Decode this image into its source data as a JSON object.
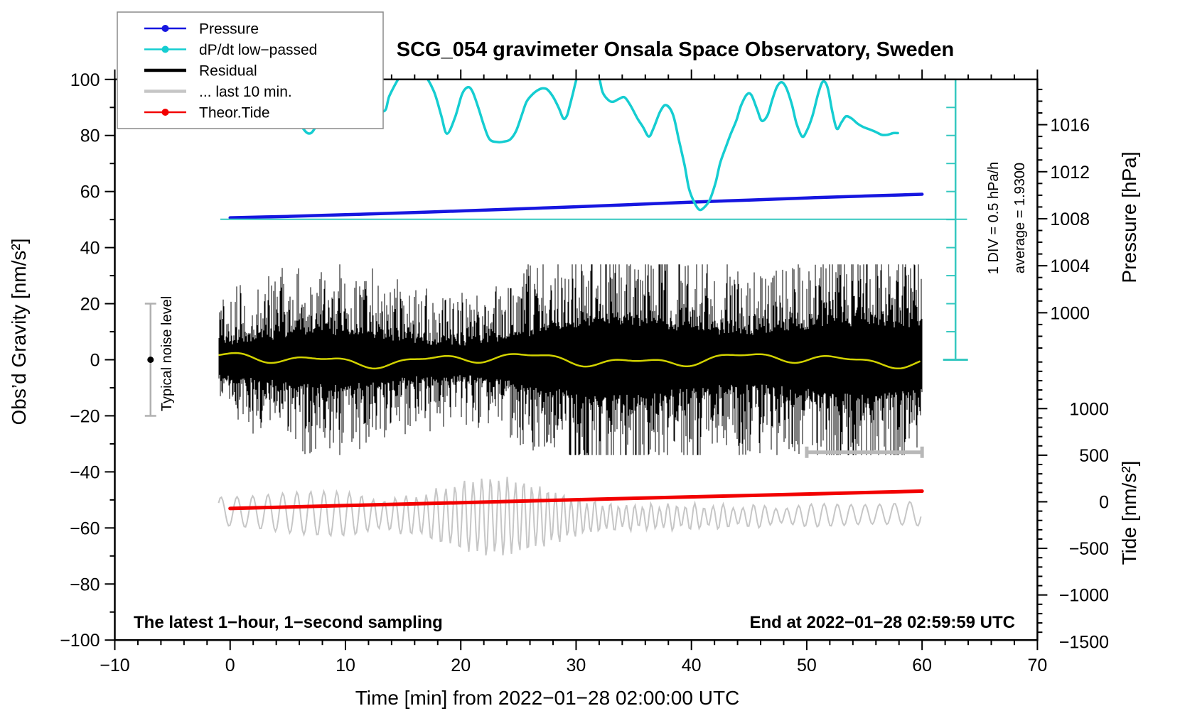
{
  "title": "SCG_054 gravimeter Onsala Space Observatory, Sweden",
  "footer": {
    "left": "The latest 1−hour, 1−second sampling",
    "right": "End at 2022−01−28 02:59:59 UTC"
  },
  "side_annotations": {
    "div": "1 DIV = 0.5 hPa/h",
    "average": "average = 1.9300",
    "noise": "Typical noise level"
  },
  "legend": [
    {
      "label": "Pressure",
      "color": "#1616e0",
      "line_width": 2.5,
      "marker": true
    },
    {
      "label": "dP/dt low−passed",
      "color": "#15cdd1",
      "line_width": 2.5,
      "marker": true
    },
    {
      "label": "Residual",
      "color": "#000000",
      "line_width": 4.5,
      "marker": false
    },
    {
      "label": "... last 10 min.",
      "color": "#c6c6c6",
      "line_width": 4.5,
      "marker": false
    },
    {
      "label": "Theor.Tide",
      "color": "#f20000",
      "line_width": 2.5,
      "marker": true
    }
  ],
  "chart_data": {
    "type": "line",
    "title": "SCG_054 gravimeter Onsala Space Observatory, Sweden",
    "xlabel": "Time [min] from 2022−01−28 02:00:00 UTC",
    "x": {
      "range": [
        -10,
        70
      ],
      "major_tick": 10,
      "minor_tick": 2,
      "tick_values": [
        -10,
        0,
        10,
        20,
        30,
        40,
        50,
        60,
        70
      ],
      "tick_labels": [
        "−10",
        "0",
        "10",
        "20",
        "30",
        "40",
        "50",
        "60",
        "70"
      ]
    },
    "y_gravity": {
      "label": "Obs’d Gravity [nm/s²]",
      "range": [
        -100,
        100
      ],
      "major_tick": 20,
      "minor_tick": 10,
      "tick_values": [
        100,
        80,
        60,
        40,
        20,
        0,
        -20,
        -40,
        -60,
        -80,
        -100
      ],
      "tick_labels": [
        "100",
        "80",
        "60",
        "40",
        "20",
        "0",
        "−20",
        "−40",
        "−60",
        "−80",
        "−100"
      ]
    },
    "y_pressure": {
      "label": "Pressure [hPa]",
      "tick_values": [
        1016,
        1012,
        1008,
        1004,
        1000
      ],
      "tick_labels": [
        "1016",
        "1012",
        "1008",
        "1004",
        "1000"
      ],
      "minor_step": 1,
      "minor_range": [
        996,
        1020
      ],
      "gravity_anchor": {
        "value": 1008,
        "gravity": 50.3
      },
      "gravity_per_unit": 4.193
    },
    "y_tide": {
      "label": "Tide [nm/s²]",
      "tick_values": [
        1000,
        500,
        0,
        -500,
        -1000,
        -1500
      ],
      "tick_labels": [
        "1000",
        "500",
        "0",
        "−500",
        "−1000",
        "−1500"
      ],
      "minor_step": 100,
      "minor_range": [
        -1500,
        1500
      ],
      "gravity_anchor": {
        "value": 0,
        "gravity": -50.67
      },
      "gravity_per_unit": 0.03324
    },
    "dpdt_scale": {
      "zero_gravity": 50.1,
      "gravity_per_unit": 19.96,
      "div_value_hpa_per_h": 0.5
    },
    "series": {
      "pressure": {
        "name": "Pressure",
        "color": "#1616e0",
        "units": "hPa",
        "average_rate_hpa_per_h": 1.93,
        "points": [
          [
            0,
            1008.08
          ],
          [
            5,
            1008.2
          ],
          [
            10,
            1008.34
          ],
          [
            15,
            1008.5
          ],
          [
            20,
            1008.66
          ],
          [
            25,
            1008.84
          ],
          [
            30,
            1009.02
          ],
          [
            35,
            1009.21
          ],
          [
            40,
            1009.41
          ],
          [
            45,
            1009.59
          ],
          [
            50,
            1009.77
          ],
          [
            55,
            1009.93
          ],
          [
            60,
            1010.08
          ]
        ]
      },
      "dpdt": {
        "name": "dP/dt low−passed",
        "color": "#15cdd1",
        "units": "hPa/h",
        "points": [
          [
            4.2,
            2.9
          ],
          [
            4.5,
            2.51
          ],
          [
            5.3,
            2.01
          ],
          [
            6.3,
            1.63
          ],
          [
            7.0,
            1.54
          ],
          [
            7.8,
            1.79
          ],
          [
            8.5,
            1.99
          ],
          [
            9.5,
            2.17
          ],
          [
            10.6,
            2.27
          ],
          [
            11.8,
            2.14
          ],
          [
            13.3,
            1.93
          ],
          [
            13.8,
            2.2
          ],
          [
            14.5,
            2.48
          ],
          [
            15.2,
            2.71
          ],
          [
            16.1,
            2.75
          ],
          [
            16.9,
            2.58
          ],
          [
            17.7,
            2.27
          ],
          [
            18.3,
            1.86
          ],
          [
            18.8,
            1.53
          ],
          [
            19.5,
            1.82
          ],
          [
            20.1,
            2.23
          ],
          [
            20.6,
            2.36
          ],
          [
            21.0,
            2.29
          ],
          [
            21.5,
            2.01
          ],
          [
            22.0,
            1.68
          ],
          [
            22.5,
            1.43
          ],
          [
            23.2,
            1.38
          ],
          [
            23.8,
            1.39
          ],
          [
            24.3,
            1.43
          ],
          [
            24.8,
            1.58
          ],
          [
            25.3,
            1.87
          ],
          [
            25.7,
            2.1
          ],
          [
            26.2,
            2.23
          ],
          [
            26.7,
            2.31
          ],
          [
            27.1,
            2.34
          ],
          [
            27.5,
            2.32
          ],
          [
            28.0,
            2.19
          ],
          [
            28.5,
            1.99
          ],
          [
            28.9,
            1.8
          ],
          [
            29.2,
            1.85
          ],
          [
            29.4,
            1.99
          ],
          [
            29.7,
            2.23
          ],
          [
            30.1,
            2.55
          ],
          [
            30.6,
            2.78
          ],
          [
            31.4,
            2.78
          ],
          [
            32.0,
            2.52
          ],
          [
            32.3,
            2.27
          ],
          [
            32.8,
            2.13
          ],
          [
            33.2,
            2.1
          ],
          [
            33.7,
            2.15
          ],
          [
            34.2,
            2.18
          ],
          [
            34.7,
            2.04
          ],
          [
            35.3,
            1.81
          ],
          [
            35.8,
            1.65
          ],
          [
            36.3,
            1.48
          ],
          [
            36.7,
            1.62
          ],
          [
            37.3,
            1.93
          ],
          [
            37.8,
            2.04
          ],
          [
            38.4,
            1.87
          ],
          [
            38.9,
            1.43
          ],
          [
            39.4,
            0.97
          ],
          [
            39.8,
            0.54
          ],
          [
            40.3,
            0.28
          ],
          [
            40.7,
            0.17
          ],
          [
            41.1,
            0.21
          ],
          [
            41.6,
            0.35
          ],
          [
            42.1,
            0.66
          ],
          [
            42.5,
            1.01
          ],
          [
            43.0,
            1.3
          ],
          [
            43.4,
            1.52
          ],
          [
            43.9,
            1.77
          ],
          [
            44.3,
            2.03
          ],
          [
            44.8,
            2.23
          ],
          [
            45.2,
            2.22
          ],
          [
            45.7,
            1.96
          ],
          [
            46.1,
            1.76
          ],
          [
            46.6,
            1.86
          ],
          [
            47.0,
            2.13
          ],
          [
            47.4,
            2.36
          ],
          [
            47.8,
            2.45
          ],
          [
            48.2,
            2.36
          ],
          [
            48.7,
            2.06
          ],
          [
            49.1,
            1.72
          ],
          [
            49.6,
            1.48
          ],
          [
            50.0,
            1.58
          ],
          [
            50.5,
            1.85
          ],
          [
            51.0,
            2.25
          ],
          [
            51.4,
            2.46
          ],
          [
            51.8,
            2.36
          ],
          [
            52.2,
            1.94
          ],
          [
            52.6,
            1.62
          ],
          [
            53.0,
            1.73
          ],
          [
            53.4,
            1.84
          ],
          [
            53.9,
            1.8
          ],
          [
            54.4,
            1.71
          ],
          [
            54.9,
            1.65
          ],
          [
            55.4,
            1.61
          ],
          [
            56.0,
            1.56
          ],
          [
            56.5,
            1.51
          ],
          [
            57.0,
            1.51
          ],
          [
            57.5,
            1.54
          ],
          [
            57.9,
            1.54
          ]
        ]
      },
      "residual": {
        "name": "Residual",
        "color": "#000000",
        "units": "nm/s²",
        "description": "1-second sampling residual noise, mean 0, dense band about ±10, spikes to ±34",
        "t_range": [
          -1,
          60
        ],
        "band_halfwidth": 10,
        "spike_max": 34,
        "seed": 12
      },
      "residual_lowpass": {
        "color": "#d2d200",
        "units": "nm/s²",
        "amplitude": 1.5,
        "t_range": [
          -1,
          60
        ]
      },
      "last10min": {
        "name": "... last 10 min.",
        "color": "#c6c6c6",
        "units": "nm/s² (tide scale)",
        "t_range": [
          -1,
          60
        ],
        "center_tide": -105,
        "center_wander": 60,
        "amp_tide_min": 100,
        "amp_tide_max": 440,
        "seed": 5
      },
      "tide": {
        "name": "Theor.Tide",
        "color": "#f20000",
        "units": "nm/s²",
        "points": [
          [
            0,
            -72
          ],
          [
            15,
            -25
          ],
          [
            30,
            22
          ],
          [
            45,
            68
          ],
          [
            60,
            114
          ]
        ]
      }
    },
    "markers": {
      "scale_bar": {
        "t_from": 50,
        "t_to": 60,
        "gravity": -33,
        "color": "#b8b8b8"
      },
      "noise_bar": {
        "t": -6.9,
        "gravity_from": 20,
        "gravity_to": -20,
        "dot_gravity": 0,
        "color": "#b0b0b0"
      },
      "ruler": {
        "t": 62.9,
        "gravity_from": 0,
        "gravity_to": 100,
        "div_gravity": 10,
        "color": "#35c8c0",
        "zero_line": {
          "t_from": -0.85,
          "t_to": 63.9,
          "gravity": 50.1
        }
      }
    }
  }
}
